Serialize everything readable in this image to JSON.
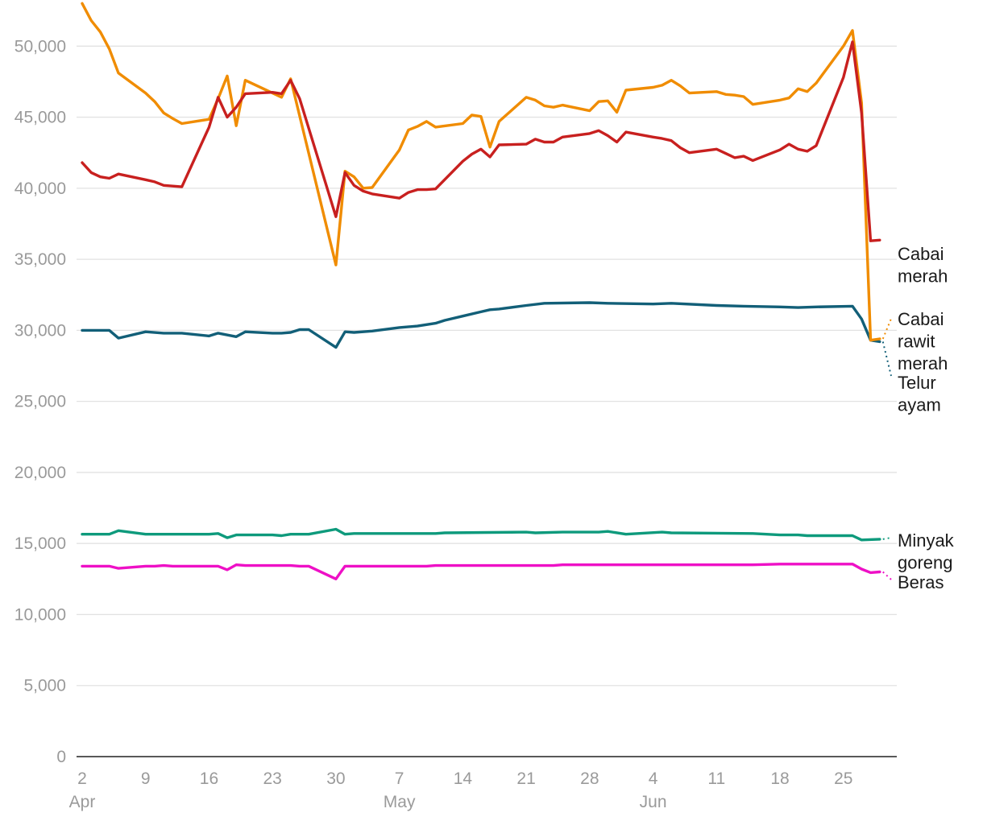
{
  "chart_data": {
    "type": "line",
    "title": "",
    "xlabel": "",
    "ylabel": "",
    "ylim": [
      0,
      52000
    ],
    "y_ticks": [
      0,
      5000,
      10000,
      15000,
      20000,
      25000,
      30000,
      35000,
      40000,
      45000,
      50000
    ],
    "y_tick_labels": [
      "0",
      "5,000",
      "10,000",
      "15,000",
      "20,000",
      "25,000",
      "30,000",
      "35,000",
      "40,000",
      "45,000",
      "50,000"
    ],
    "grid": true,
    "x_range": [
      "2024-04-02",
      "2024-06-30"
    ],
    "x_ticks": [
      {
        "date": "2024-04-02",
        "label": "2"
      },
      {
        "date": "2024-04-09",
        "label": "9"
      },
      {
        "date": "2024-04-16",
        "label": "16"
      },
      {
        "date": "2024-04-23",
        "label": "23"
      },
      {
        "date": "2024-04-30",
        "label": "30"
      },
      {
        "date": "2024-05-07",
        "label": "7"
      },
      {
        "date": "2024-05-14",
        "label": "14"
      },
      {
        "date": "2024-05-21",
        "label": "21"
      },
      {
        "date": "2024-05-28",
        "label": "28"
      },
      {
        "date": "2024-06-04",
        "label": "4"
      },
      {
        "date": "2024-06-11",
        "label": "11"
      },
      {
        "date": "2024-06-18",
        "label": "18"
      },
      {
        "date": "2024-06-25",
        "label": "25"
      }
    ],
    "month_labels": [
      {
        "date": "2024-04-02",
        "label": "Apr"
      },
      {
        "date": "2024-05-07",
        "label": "May"
      },
      {
        "date": "2024-06-04",
        "label": "Jun"
      }
    ],
    "legend": "labels at line ends (right)",
    "series": [
      {
        "name": "Cabai rawit merah",
        "color": "#f08c00",
        "label_lines": [
          "Cabai",
          "rawit",
          "merah"
        ],
        "points": [
          [
            "2024-04-02",
            53000
          ],
          [
            "2024-04-03",
            51800
          ],
          [
            "2024-04-04",
            51000
          ],
          [
            "2024-04-05",
            49800
          ],
          [
            "2024-04-06",
            48100
          ],
          [
            "2024-04-09",
            46700
          ],
          [
            "2024-04-10",
            46100
          ],
          [
            "2024-04-11",
            45300
          ],
          [
            "2024-04-12",
            44900
          ],
          [
            "2024-04-13",
            44550
          ],
          [
            "2024-04-16",
            44850
          ],
          [
            "2024-04-17",
            46300
          ],
          [
            "2024-04-18",
            47900
          ],
          [
            "2024-04-19",
            44400
          ],
          [
            "2024-04-20",
            47600
          ],
          [
            "2024-04-23",
            46700
          ],
          [
            "2024-04-24",
            46400
          ],
          [
            "2024-04-25",
            47700
          ],
          [
            "2024-04-30",
            34600
          ],
          [
            "2024-05-01",
            41200
          ],
          [
            "2024-05-02",
            40800
          ],
          [
            "2024-05-03",
            40000
          ],
          [
            "2024-05-04",
            40050
          ],
          [
            "2024-05-07",
            42700
          ],
          [
            "2024-05-08",
            44100
          ],
          [
            "2024-05-09",
            44350
          ],
          [
            "2024-05-10",
            44700
          ],
          [
            "2024-05-11",
            44300
          ],
          [
            "2024-05-14",
            44550
          ],
          [
            "2024-05-15",
            45150
          ],
          [
            "2024-05-16",
            45050
          ],
          [
            "2024-05-17",
            42900
          ],
          [
            "2024-05-18",
            44700
          ],
          [
            "2024-05-21",
            46400
          ],
          [
            "2024-05-22",
            46200
          ],
          [
            "2024-05-23",
            45800
          ],
          [
            "2024-05-24",
            45700
          ],
          [
            "2024-05-25",
            45850
          ],
          [
            "2024-05-28",
            45450
          ],
          [
            "2024-05-29",
            46100
          ],
          [
            "2024-05-30",
            46150
          ],
          [
            "2024-05-31",
            45350
          ],
          [
            "2024-06-01",
            46900
          ],
          [
            "2024-06-04",
            47100
          ],
          [
            "2024-06-05",
            47250
          ],
          [
            "2024-06-06",
            47600
          ],
          [
            "2024-06-07",
            47200
          ],
          [
            "2024-06-08",
            46700
          ],
          [
            "2024-06-11",
            46800
          ],
          [
            "2024-06-12",
            46600
          ],
          [
            "2024-06-13",
            46550
          ],
          [
            "2024-06-14",
            46450
          ],
          [
            "2024-06-15",
            45900
          ],
          [
            "2024-06-18",
            46200
          ],
          [
            "2024-06-19",
            46350
          ],
          [
            "2024-06-20",
            47000
          ],
          [
            "2024-06-21",
            46800
          ],
          [
            "2024-06-22",
            47400
          ],
          [
            "2024-06-25",
            50000
          ],
          [
            "2024-06-26",
            51100
          ],
          [
            "2024-06-27",
            46000
          ],
          [
            "2024-06-28",
            29300
          ],
          [
            "2024-06-29",
            29400
          ]
        ]
      },
      {
        "name": "Cabai merah",
        "color": "#c8201f",
        "label_lines": [
          "Cabai",
          "merah"
        ],
        "points": [
          [
            "2024-04-02",
            41800
          ],
          [
            "2024-04-03",
            41100
          ],
          [
            "2024-04-04",
            40800
          ],
          [
            "2024-04-05",
            40700
          ],
          [
            "2024-04-06",
            41000
          ],
          [
            "2024-04-09",
            40600
          ],
          [
            "2024-04-10",
            40450
          ],
          [
            "2024-04-11",
            40200
          ],
          [
            "2024-04-13",
            40100
          ],
          [
            "2024-04-16",
            44300
          ],
          [
            "2024-04-17",
            46400
          ],
          [
            "2024-04-18",
            45000
          ],
          [
            "2024-04-19",
            45700
          ],
          [
            "2024-04-20",
            46650
          ],
          [
            "2024-04-23",
            46750
          ],
          [
            "2024-04-24",
            46650
          ],
          [
            "2024-04-25",
            47600
          ],
          [
            "2024-04-26",
            46300
          ],
          [
            "2024-04-30",
            38000
          ],
          [
            "2024-05-01",
            41100
          ],
          [
            "2024-05-02",
            40200
          ],
          [
            "2024-05-03",
            39800
          ],
          [
            "2024-05-04",
            39600
          ],
          [
            "2024-05-07",
            39300
          ],
          [
            "2024-05-08",
            39700
          ],
          [
            "2024-05-09",
            39900
          ],
          [
            "2024-05-10",
            39900
          ],
          [
            "2024-05-11",
            39950
          ],
          [
            "2024-05-14",
            41900
          ],
          [
            "2024-05-15",
            42400
          ],
          [
            "2024-05-16",
            42750
          ],
          [
            "2024-05-17",
            42200
          ],
          [
            "2024-05-18",
            43050
          ],
          [
            "2024-05-21",
            43100
          ],
          [
            "2024-05-22",
            43450
          ],
          [
            "2024-05-23",
            43250
          ],
          [
            "2024-05-24",
            43250
          ],
          [
            "2024-05-25",
            43600
          ],
          [
            "2024-05-28",
            43850
          ],
          [
            "2024-05-29",
            44050
          ],
          [
            "2024-05-30",
            43700
          ],
          [
            "2024-05-31",
            43250
          ],
          [
            "2024-06-01",
            43950
          ],
          [
            "2024-06-04",
            43600
          ],
          [
            "2024-06-05",
            43500
          ],
          [
            "2024-06-06",
            43350
          ],
          [
            "2024-06-07",
            42850
          ],
          [
            "2024-06-08",
            42500
          ],
          [
            "2024-06-11",
            42750
          ],
          [
            "2024-06-12",
            42450
          ],
          [
            "2024-06-13",
            42150
          ],
          [
            "2024-06-14",
            42250
          ],
          [
            "2024-06-15",
            41950
          ],
          [
            "2024-06-18",
            42700
          ],
          [
            "2024-06-19",
            43100
          ],
          [
            "2024-06-20",
            42750
          ],
          [
            "2024-06-21",
            42600
          ],
          [
            "2024-06-22",
            43000
          ],
          [
            "2024-06-25",
            47800
          ],
          [
            "2024-06-26",
            50300
          ],
          [
            "2024-06-27",
            45300
          ],
          [
            "2024-06-28",
            36300
          ],
          [
            "2024-06-29",
            36350
          ]
        ]
      },
      {
        "name": "Telur ayam",
        "color": "#125f78",
        "label_lines": [
          "Telur",
          "ayam"
        ],
        "points": [
          [
            "2024-04-02",
            30000
          ],
          [
            "2024-04-05",
            30000
          ],
          [
            "2024-04-06",
            29450
          ],
          [
            "2024-04-09",
            29900
          ],
          [
            "2024-04-11",
            29800
          ],
          [
            "2024-04-13",
            29800
          ],
          [
            "2024-04-16",
            29600
          ],
          [
            "2024-04-17",
            29800
          ],
          [
            "2024-04-19",
            29550
          ],
          [
            "2024-04-20",
            29900
          ],
          [
            "2024-04-23",
            29800
          ],
          [
            "2024-04-24",
            29800
          ],
          [
            "2024-04-25",
            29850
          ],
          [
            "2024-04-26",
            30050
          ],
          [
            "2024-04-27",
            30050
          ],
          [
            "2024-04-30",
            28800
          ],
          [
            "2024-05-01",
            29900
          ],
          [
            "2024-05-02",
            29850
          ],
          [
            "2024-05-04",
            29950
          ],
          [
            "2024-05-07",
            30200
          ],
          [
            "2024-05-09",
            30300
          ],
          [
            "2024-05-11",
            30500
          ],
          [
            "2024-05-12",
            30700
          ],
          [
            "2024-05-14",
            31000
          ],
          [
            "2024-05-16",
            31300
          ],
          [
            "2024-05-17",
            31450
          ],
          [
            "2024-05-18",
            31500
          ],
          [
            "2024-05-21",
            31750
          ],
          [
            "2024-05-23",
            31900
          ],
          [
            "2024-05-28",
            31950
          ],
          [
            "2024-05-30",
            31900
          ],
          [
            "2024-06-04",
            31850
          ],
          [
            "2024-06-06",
            31900
          ],
          [
            "2024-06-11",
            31750
          ],
          [
            "2024-06-14",
            31700
          ],
          [
            "2024-06-18",
            31650
          ],
          [
            "2024-06-20",
            31600
          ],
          [
            "2024-06-22",
            31650
          ],
          [
            "2024-06-26",
            31700
          ],
          [
            "2024-06-27",
            30800
          ],
          [
            "2024-06-28",
            29300
          ],
          [
            "2024-06-29",
            29200
          ]
        ]
      },
      {
        "name": "Minyak goreng",
        "color": "#0e9a7c",
        "label_lines": [
          "Minyak",
          "goreng"
        ],
        "points": [
          [
            "2024-04-02",
            15650
          ],
          [
            "2024-04-05",
            15650
          ],
          [
            "2024-04-06",
            15900
          ],
          [
            "2024-04-09",
            15650
          ],
          [
            "2024-04-16",
            15650
          ],
          [
            "2024-04-17",
            15700
          ],
          [
            "2024-04-18",
            15400
          ],
          [
            "2024-04-19",
            15600
          ],
          [
            "2024-04-23",
            15600
          ],
          [
            "2024-04-24",
            15550
          ],
          [
            "2024-04-25",
            15650
          ],
          [
            "2024-04-27",
            15650
          ],
          [
            "2024-04-30",
            16000
          ],
          [
            "2024-05-01",
            15650
          ],
          [
            "2024-05-02",
            15700
          ],
          [
            "2024-05-11",
            15700
          ],
          [
            "2024-05-12",
            15750
          ],
          [
            "2024-05-21",
            15800
          ],
          [
            "2024-05-22",
            15750
          ],
          [
            "2024-05-25",
            15800
          ],
          [
            "2024-05-29",
            15800
          ],
          [
            "2024-05-30",
            15850
          ],
          [
            "2024-06-01",
            15650
          ],
          [
            "2024-06-05",
            15800
          ],
          [
            "2024-06-06",
            15750
          ],
          [
            "2024-06-15",
            15700
          ],
          [
            "2024-06-18",
            15600
          ],
          [
            "2024-06-20",
            15600
          ],
          [
            "2024-06-21",
            15550
          ],
          [
            "2024-06-26",
            15550
          ],
          [
            "2024-06-27",
            15250
          ],
          [
            "2024-06-29",
            15300
          ]
        ]
      },
      {
        "name": "Beras",
        "color": "#ee10c6",
        "label_lines": [
          "Beras"
        ],
        "points": [
          [
            "2024-04-02",
            13400
          ],
          [
            "2024-04-05",
            13400
          ],
          [
            "2024-04-06",
            13250
          ],
          [
            "2024-04-09",
            13400
          ],
          [
            "2024-04-10",
            13400
          ],
          [
            "2024-04-11",
            13450
          ],
          [
            "2024-04-12",
            13400
          ],
          [
            "2024-04-17",
            13400
          ],
          [
            "2024-04-18",
            13150
          ],
          [
            "2024-04-19",
            13500
          ],
          [
            "2024-04-20",
            13450
          ],
          [
            "2024-04-25",
            13450
          ],
          [
            "2024-04-26",
            13400
          ],
          [
            "2024-04-27",
            13400
          ],
          [
            "2024-04-30",
            12500
          ],
          [
            "2024-05-01",
            13400
          ],
          [
            "2024-05-10",
            13400
          ],
          [
            "2024-05-11",
            13450
          ],
          [
            "2024-05-24",
            13450
          ],
          [
            "2024-05-25",
            13500
          ],
          [
            "2024-06-15",
            13500
          ],
          [
            "2024-06-18",
            13550
          ],
          [
            "2024-06-26",
            13550
          ],
          [
            "2024-06-27",
            13200
          ],
          [
            "2024-06-28",
            12950
          ],
          [
            "2024-06-29",
            13000
          ]
        ]
      }
    ]
  }
}
